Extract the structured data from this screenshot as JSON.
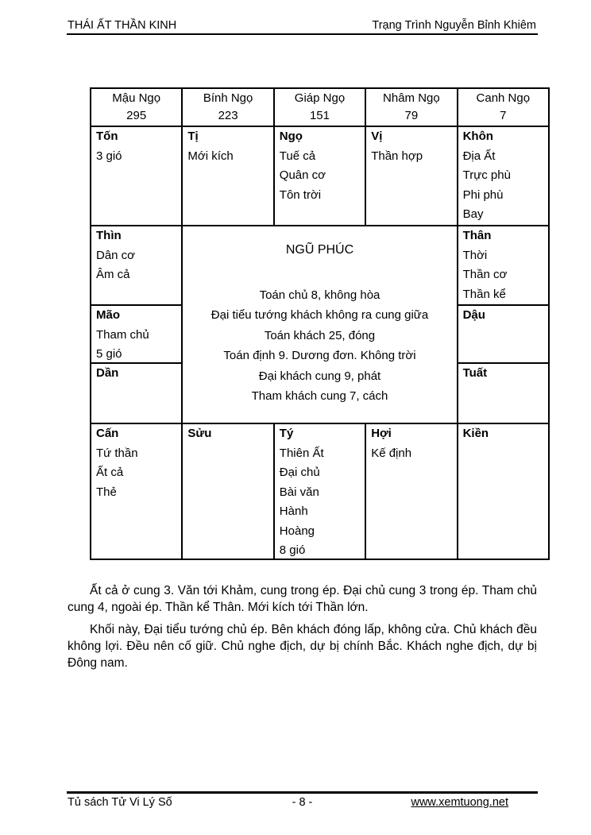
{
  "header": {
    "left": "THÁI ẤT THẦN KINH",
    "right": "Trạng Trình Nguyễn Bỉnh Khiêm"
  },
  "table": {
    "stems": [
      {
        "label": "Mậu Ngọ",
        "value": "295"
      },
      {
        "label": "Bính Ngọ",
        "value": "223"
      },
      {
        "label": "Giáp Ngọ",
        "value": "151"
      },
      {
        "label": "Nhâm Ngọ",
        "value": "79"
      },
      {
        "label": "Canh Ngọ",
        "value": "7"
      }
    ],
    "row_top": [
      {
        "title": "Tốn",
        "lines": [
          "3 gió"
        ]
      },
      {
        "title": "Tị",
        "lines": [
          "Mới kích"
        ]
      },
      {
        "title": "Ngọ",
        "lines": [
          "Tuế cả",
          "Quân cơ",
          "Tôn trời"
        ]
      },
      {
        "title": "Vị",
        "lines": [
          "Thần hợp"
        ]
      },
      {
        "title": "Khôn",
        "lines": [
          "Địa Ất",
          "Trực phù",
          "Phi phù",
          "Bay"
        ]
      }
    ],
    "left_column": [
      {
        "title": "Thìn",
        "lines": [
          "Dân cơ",
          "Âm cả"
        ]
      },
      {
        "title": "Mão",
        "lines": [
          "Tham chủ",
          "5 gió"
        ]
      },
      {
        "title": "Dần",
        "lines": []
      }
    ],
    "center": {
      "title": "NGŨ PHÚC",
      "lines": [
        "Toán chủ 8, không hòa",
        "Đại tiểu tướng khách không ra cung giữa",
        "Toán khách 25, đóng",
        "Toán định 9. Dương đơn. Không trời",
        "Đại khách cung 9, phát",
        "Tham khách cung 7, cách"
      ]
    },
    "right_column": [
      {
        "title": "Thân",
        "lines": [
          "Thời",
          "Thần cơ",
          "Thần kể"
        ]
      },
      {
        "title": "Dậu",
        "lines": []
      },
      {
        "title": "Tuất",
        "lines": []
      }
    ],
    "row_bottom": [
      {
        "title": "Cấn",
        "lines": [
          "Tứ thần",
          "Ất cả",
          "Thẻ"
        ]
      },
      {
        "title": "Sửu",
        "lines": []
      },
      {
        "title": "Tý",
        "lines": [
          "Thiên Ất",
          "Đại chủ",
          "Bài văn",
          "Hành",
          "Hoàng",
          "8 gió"
        ]
      },
      {
        "title": "Hợi",
        "lines": [
          "Kế định"
        ]
      },
      {
        "title": "Kiền",
        "lines": []
      }
    ]
  },
  "paragraphs": [
    "Ất cả ở cung 3. Văn tới Khảm, cung trong ép. Đại chủ cung 3 trong ép. Tham chủ cung 4, ngoài ép. Thần kể Thân. Mới kích tới Thần lớn.",
    "Khối này, Đại tiểu tướng chủ ép. Bên khách đóng lấp, không cửa. Chủ khách đều không lợi. Đều nên cố giữ. Chủ nghe địch, dự bị chính Bắc. Khách nghe địch, dự bị Đông nam."
  ],
  "footer": {
    "left": "Tủ sách Tử Vi Lý Số",
    "center": "- 8 -",
    "right": "www.xemtuong.net"
  }
}
